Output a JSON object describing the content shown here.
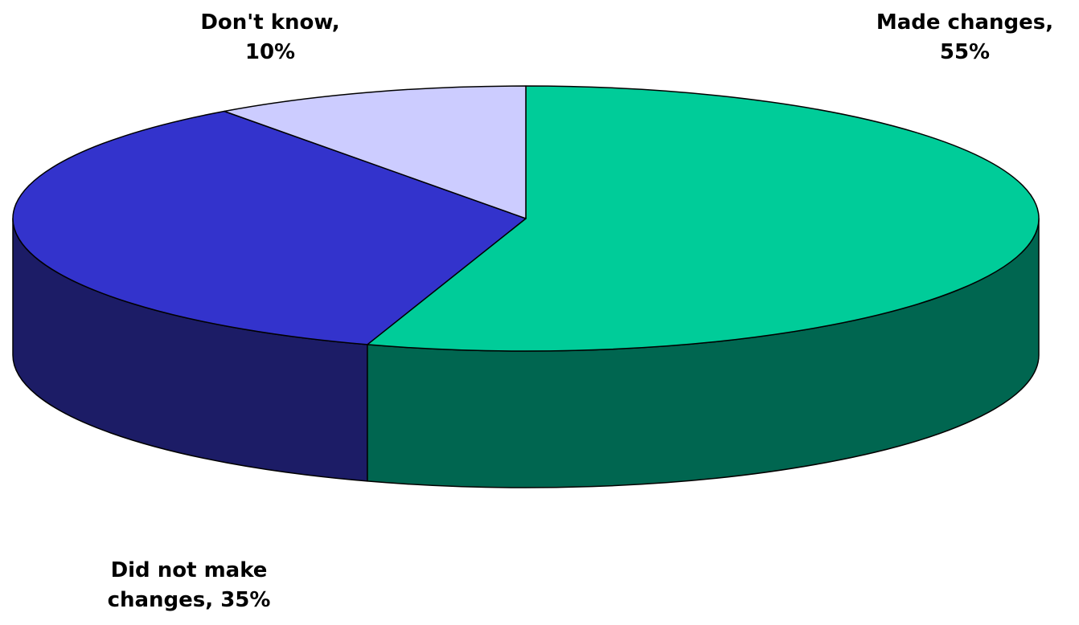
{
  "chart_data": {
    "type": "pie",
    "style": "3d",
    "start_angle": "12 o'clock",
    "direction": "clockwise",
    "slices": [
      {
        "name": "Made changes",
        "value": 55,
        "label": "55%",
        "top_color": "#00cc99",
        "side_color": "#006650"
      },
      {
        "name": "Did not make changes",
        "value": 35,
        "label": "35%",
        "top_color": "#3333cc",
        "side_color": "#1c1c66"
      },
      {
        "name": "Don't know",
        "value": 10,
        "label": "10%",
        "top_color": "#ccccff",
        "side_color": "#9999cc"
      }
    ],
    "data_labels": {
      "made": {
        "line1": "Made changes,",
        "line2": "55%"
      },
      "not": {
        "line1": "Did not make",
        "line2": "changes, 35%"
      },
      "dk": {
        "line1": "Don't know,",
        "line2": "10%"
      }
    }
  }
}
